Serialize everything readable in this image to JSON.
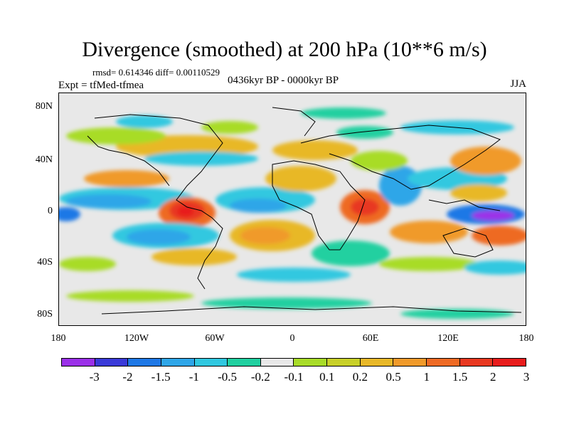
{
  "title": "Divergence (smoothed) at 200 hPa (10**6 m/s)",
  "stats": "rmsd= 0.614346 diff= 0.00110529",
  "experiment": "Expt = tfMed-tfmea",
  "period": "0436kyr BP - 0000kyr BP",
  "season": "JJA",
  "lat_labels": [
    "80N",
    "40N",
    "0",
    "40S",
    "80S"
  ],
  "lon_labels": [
    "180",
    "120W",
    "60W",
    "0",
    "60E",
    "120E",
    "180"
  ],
  "colorbar": {
    "colors": [
      "#9b30e8",
      "#3a3ad8",
      "#1e78e6",
      "#2ea6e8",
      "#30c8e0",
      "#20d0a0",
      "#e8e8e8",
      "#a8dc28",
      "#c8d028",
      "#e8b828",
      "#f09a2a",
      "#ee6a24",
      "#e83820",
      "#e81c1c"
    ],
    "labels": [
      "-3",
      "-2",
      "-1.5",
      "-1",
      "-0.5",
      "-0.2",
      "-0.1",
      "0.1",
      "0.2",
      "0.5",
      "1",
      "1.5",
      "2",
      "3"
    ]
  }
}
